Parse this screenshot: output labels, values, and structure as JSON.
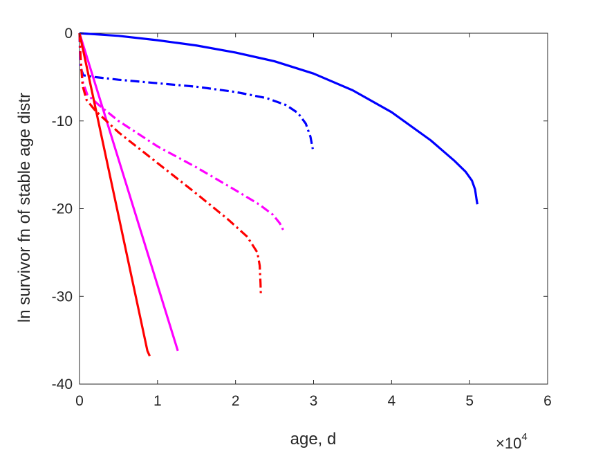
{
  "chart_data": {
    "type": "line",
    "title": "",
    "xlabel": "age, d",
    "ylabel": "ln survivor fn of stable age distr",
    "x_exponent": "4",
    "x_exponent_prefix": "×10",
    "xlim": [
      0,
      60000
    ],
    "ylim": [
      -40,
      0
    ],
    "xticks": [
      0,
      10000,
      20000,
      30000,
      40000,
      50000,
      60000
    ],
    "xtick_labels": [
      "0",
      "1",
      "2",
      "3",
      "4",
      "5",
      "6"
    ],
    "yticks": [
      0,
      -10,
      -20,
      -30,
      -40
    ],
    "ytick_labels": [
      "0",
      "-10",
      "-20",
      "-30",
      "-40"
    ],
    "grid": false,
    "legend": "none",
    "series": [
      {
        "color": "#0000ff",
        "dash": "solid",
        "points": [
          [
            0,
            0
          ],
          [
            5000,
            -0.3
          ],
          [
            10000,
            -0.8
          ],
          [
            15000,
            -1.4
          ],
          [
            20000,
            -2.2
          ],
          [
            25000,
            -3.2
          ],
          [
            30000,
            -4.6
          ],
          [
            35000,
            -6.5
          ],
          [
            40000,
            -9.0
          ],
          [
            45000,
            -12.2
          ],
          [
            48000,
            -14.5
          ],
          [
            49500,
            -15.8
          ],
          [
            50300,
            -16.8
          ],
          [
            50700,
            -17.8
          ],
          [
            50900,
            -19.0
          ],
          [
            51000,
            -19.5
          ]
        ]
      },
      {
        "color": "#0000ff",
        "dash": "dashdot",
        "points": [
          [
            0,
            0
          ],
          [
            40,
            -1.5
          ],
          [
            80,
            -3.0
          ],
          [
            150,
            -4.0
          ],
          [
            500,
            -4.8
          ],
          [
            2000,
            -5.0
          ],
          [
            5000,
            -5.3
          ],
          [
            10000,
            -5.7
          ],
          [
            15000,
            -6.1
          ],
          [
            20000,
            -6.7
          ],
          [
            24000,
            -7.4
          ],
          [
            26500,
            -8.2
          ],
          [
            28000,
            -9.1
          ],
          [
            29000,
            -10.3
          ],
          [
            29600,
            -11.8
          ],
          [
            29900,
            -13.2
          ]
        ]
      },
      {
        "color": "#ff00ff",
        "dash": "solid",
        "points": [
          [
            0,
            0
          ],
          [
            12600,
            -36.2
          ]
        ]
      },
      {
        "color": "#ff00ff",
        "dash": "dashdot",
        "points": [
          [
            0,
            0
          ],
          [
            150,
            -3.0
          ],
          [
            400,
            -5.5
          ],
          [
            1000,
            -7.0
          ],
          [
            2500,
            -8.2
          ],
          [
            5000,
            -10.0
          ],
          [
            10000,
            -12.9
          ],
          [
            15000,
            -15.3
          ],
          [
            20000,
            -17.9
          ],
          [
            23000,
            -19.5
          ],
          [
            24800,
            -20.7
          ],
          [
            25700,
            -21.7
          ],
          [
            26200,
            -22.6
          ]
        ]
      },
      {
        "color": "#ff0000",
        "dash": "solid",
        "points": [
          [
            0,
            0
          ],
          [
            8700,
            -36.2
          ],
          [
            9000,
            -36.8
          ]
        ]
      },
      {
        "color": "#ff0000",
        "dash": "dashdot",
        "points": [
          [
            0,
            0
          ],
          [
            150,
            -3.0
          ],
          [
            400,
            -6.0
          ],
          [
            900,
            -7.6
          ],
          [
            2000,
            -8.8
          ],
          [
            5000,
            -11.3
          ],
          [
            10000,
            -14.8
          ],
          [
            15000,
            -18.3
          ],
          [
            19000,
            -21.2
          ],
          [
            21500,
            -23.2
          ],
          [
            22800,
            -25.0
          ],
          [
            23100,
            -26.5
          ],
          [
            23200,
            -28.5
          ],
          [
            23250,
            -30.0
          ]
        ]
      }
    ]
  }
}
